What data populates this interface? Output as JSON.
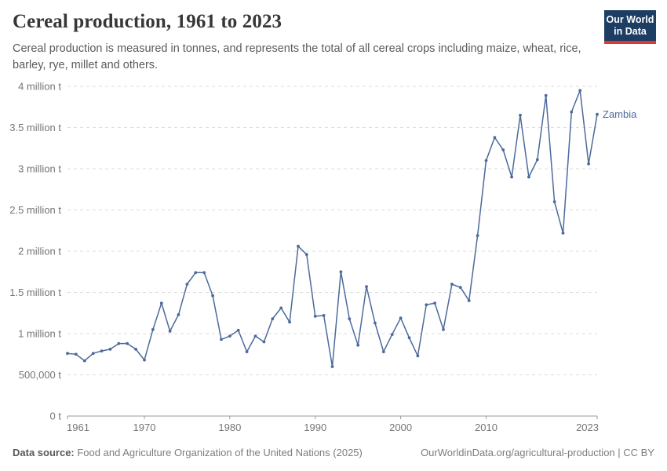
{
  "header": {
    "title": "Cereal production, 1961 to 2023",
    "subtitle": "Cereal production is measured in tonnes, and represents the total of all cereal crops including maize, wheat, rice, barley, rye, millet and others.",
    "logo": {
      "line1": "Our World",
      "line2": "in Data"
    }
  },
  "chart_data": {
    "type": "line",
    "title": "Cereal production, 1961 to 2023",
    "xlabel": "",
    "ylabel": "cereal production (tonnes)",
    "unit": "million tonnes",
    "xlim": [
      1961,
      2023
    ],
    "ylim": [
      0,
      4
    ],
    "grid": "horizontal dashed",
    "legend": "end-of-line label",
    "x_ticks": [
      1961,
      1970,
      1980,
      1990,
      2000,
      2010,
      2023
    ],
    "y_ticks": [
      {
        "label": "4 million t",
        "value": 4
      },
      {
        "label": "3.5 million t",
        "value": 3.5
      },
      {
        "label": "3 million t",
        "value": 3
      },
      {
        "label": "2.5 million t",
        "value": 2.5
      },
      {
        "label": "2 million t",
        "value": 2
      },
      {
        "label": "1.5 million t",
        "value": 1.5
      },
      {
        "label": "1 million t",
        "value": 1
      },
      {
        "label": "500,000 t",
        "value": 0.5
      },
      {
        "label": "0 t",
        "value": 0
      }
    ],
    "series": [
      {
        "name": "Zambia",
        "color": "#4c6a9c",
        "x": [
          1961,
          1962,
          1963,
          1964,
          1965,
          1966,
          1967,
          1968,
          1969,
          1970,
          1971,
          1972,
          1973,
          1974,
          1975,
          1976,
          1977,
          1978,
          1979,
          1980,
          1981,
          1982,
          1983,
          1984,
          1985,
          1986,
          1987,
          1988,
          1989,
          1990,
          1991,
          1992,
          1993,
          1994,
          1995,
          1996,
          1997,
          1998,
          1999,
          2000,
          2001,
          2002,
          2003,
          2004,
          2005,
          2006,
          2007,
          2008,
          2009,
          2010,
          2011,
          2012,
          2013,
          2014,
          2015,
          2016,
          2017,
          2018,
          2019,
          2020,
          2021,
          2022,
          2023
        ],
        "values": [
          0.76,
          0.75,
          0.67,
          0.76,
          0.79,
          0.81,
          0.88,
          0.88,
          0.81,
          0.68,
          1.05,
          1.37,
          1.03,
          1.23,
          1.6,
          1.74,
          1.74,
          1.46,
          0.93,
          0.97,
          1.04,
          0.78,
          0.97,
          0.9,
          1.18,
          1.31,
          1.14,
          2.06,
          1.96,
          1.21,
          1.22,
          0.6,
          1.75,
          1.18,
          0.86,
          1.57,
          1.13,
          0.78,
          0.99,
          1.19,
          0.95,
          0.73,
          1.35,
          1.37,
          1.05,
          1.6,
          1.56,
          1.4,
          2.19,
          3.1,
          3.38,
          3.23,
          2.9,
          3.65,
          2.9,
          3.11,
          3.89,
          2.6,
          2.22,
          3.69,
          3.95,
          3.06,
          3.66
        ]
      }
    ]
  },
  "footer": {
    "source_label": "Data source:",
    "source_text": " Food and Agriculture Organization of the United Nations (2025)",
    "link_text": "OurWorldinData.org/agricultural-production | CC BY"
  },
  "colors": {
    "line": "#4c6a9c",
    "grid": "#dcdcdc",
    "axis": "#9a9a9a",
    "tick_label": "#757575",
    "logo_bg": "#1d3d63",
    "logo_accent": "#d73a34"
  }
}
